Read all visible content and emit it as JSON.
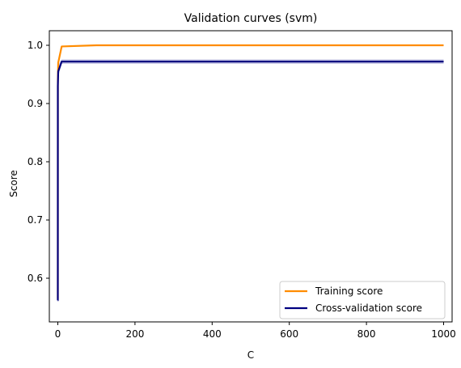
{
  "chart_data": {
    "type": "line",
    "title": "Validation curves (svm)",
    "xlabel": "C",
    "ylabel": "Score",
    "xlim": [
      -22,
      1022
    ],
    "ylim": [
      0.525,
      1.025
    ],
    "x_ticks": [
      0,
      200,
      400,
      600,
      800,
      1000
    ],
    "y_ticks": [
      0.6,
      0.7,
      0.8,
      0.9,
      1.0
    ],
    "x_tick_labels": [
      "0",
      "200",
      "400",
      "600",
      "800",
      "1000"
    ],
    "y_tick_labels": [
      "0.6",
      "0.7",
      "0.8",
      "0.9",
      "1.0"
    ],
    "grid": false,
    "legend_position": "lower-right",
    "x": [
      0.001,
      0.01,
      0.1,
      1,
      10,
      100,
      1000
    ],
    "series": [
      {
        "name": "Training score",
        "color": "#ff8c00",
        "values": [
          0.565,
          0.565,
          0.94,
          0.97,
          0.998,
          1.0,
          1.0
        ],
        "band_low": [
          0.56,
          0.56,
          0.935,
          0.965,
          0.997,
          1.0,
          1.0
        ],
        "band_high": [
          0.57,
          0.57,
          0.945,
          0.975,
          0.999,
          1.0,
          1.0
        ]
      },
      {
        "name": "Cross-validation score",
        "color": "#000080",
        "values": [
          0.562,
          0.562,
          0.93,
          0.955,
          0.972,
          0.972,
          0.972
        ],
        "band_low": [
          0.548,
          0.548,
          0.92,
          0.945,
          0.968,
          0.968,
          0.968
        ],
        "band_high": [
          0.576,
          0.576,
          0.94,
          0.965,
          0.976,
          0.976,
          0.976
        ]
      }
    ]
  }
}
